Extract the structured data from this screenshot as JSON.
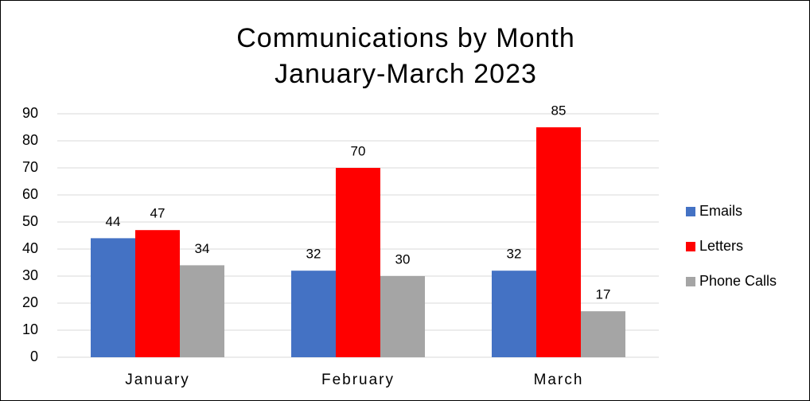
{
  "chart_data": {
    "type": "bar",
    "title": "Communications by Month",
    "subtitle": "January-March 2023",
    "categories": [
      "January",
      "February",
      "March"
    ],
    "series": [
      {
        "name": "Emails",
        "color": "#4472c4",
        "values": [
          44,
          32,
          32
        ]
      },
      {
        "name": "Letters",
        "color": "#ff0000",
        "values": [
          47,
          70,
          85
        ]
      },
      {
        "name": "Phone Calls",
        "color": "#a5a5a5",
        "values": [
          34,
          30,
          17
        ]
      }
    ],
    "ylim": [
      0,
      90
    ],
    "yticks": [
      0,
      10,
      20,
      30,
      40,
      50,
      60,
      70,
      80,
      90
    ],
    "grid": true,
    "legend": "right"
  }
}
